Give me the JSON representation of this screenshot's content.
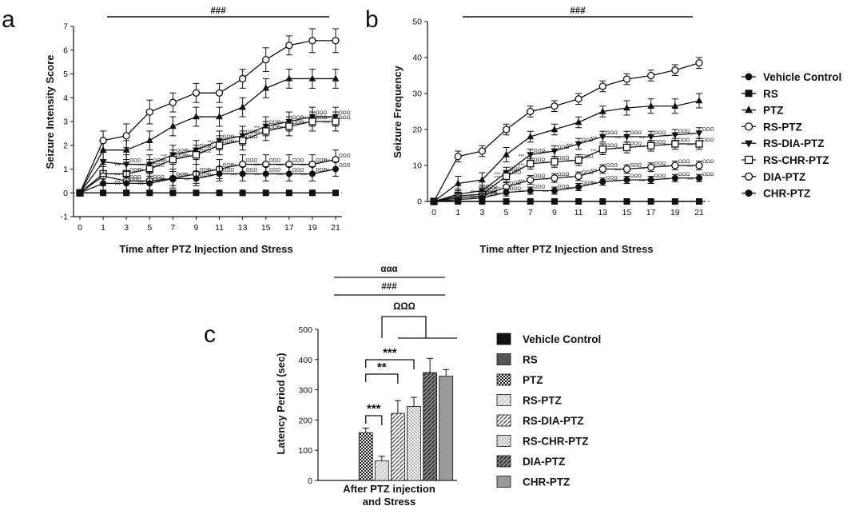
{
  "chart_data": [
    {
      "panel": "a",
      "type": "line",
      "ylabel": "Seizure Intensity Score",
      "xlabel": "Time after PTZ Injection and Stress",
      "x": [
        0,
        1,
        3,
        5,
        7,
        9,
        11,
        13,
        15,
        17,
        19,
        21
      ],
      "x_ticks": [
        "0",
        "1",
        "3",
        "5",
        "7",
        "9",
        "11",
        "13",
        "15",
        "17",
        "19",
        "21"
      ],
      "ylim": [
        -1,
        7
      ],
      "y_ticks": [
        "-1",
        "0",
        "1",
        "2",
        "3",
        "4",
        "5",
        "6",
        "7"
      ],
      "significance": "###",
      "star_label": "***",
      "omega_label": "ΩΩΩ",
      "series": [
        {
          "name": "Vehicle Control",
          "marker": "circle-filled",
          "values": [
            0,
            0,
            0,
            0,
            0,
            0,
            0,
            0,
            0,
            0,
            0,
            0
          ],
          "err": [
            0,
            0,
            0,
            0,
            0,
            0,
            0,
            0,
            0,
            0,
            0,
            0
          ]
        },
        {
          "name": "RS",
          "marker": "square-filled",
          "values": [
            0,
            0,
            0,
            0,
            0,
            0,
            0,
            0,
            0,
            0,
            0,
            0
          ],
          "err": [
            0,
            0,
            0,
            0,
            0,
            0,
            0,
            0,
            0,
            0,
            0,
            0
          ]
        },
        {
          "name": "PTZ",
          "marker": "triangle-filled",
          "values": [
            0,
            1.8,
            1.8,
            2.2,
            2.8,
            3.2,
            3.2,
            3.6,
            4.4,
            4.8,
            4.8,
            4.8
          ],
          "err": [
            0,
            0.4,
            0.4,
            0.4,
            0.4,
            0.4,
            0.4,
            0.4,
            0.4,
            0.4,
            0.4,
            0.4
          ]
        },
        {
          "name": "RS-PTZ",
          "marker": "circle-open",
          "values": [
            0,
            2.2,
            2.4,
            3.4,
            3.8,
            4.2,
            4.2,
            4.8,
            5.6,
            6.2,
            6.4,
            6.4
          ],
          "err": [
            0,
            0.4,
            0.5,
            0.5,
            0.4,
            0.4,
            0.4,
            0.4,
            0.5,
            0.4,
            0.5,
            0.5
          ]
        },
        {
          "name": "RS-DIA-PTZ",
          "marker": "triangle-down-filled",
          "values": [
            0,
            1.3,
            1.2,
            1.2,
            1.6,
            1.8,
            2.2,
            2.4,
            2.8,
            3.0,
            3.2,
            3.2
          ],
          "err": [
            0,
            0.4,
            0.4,
            0.4,
            0.4,
            0.4,
            0.4,
            0.4,
            0.4,
            0.4,
            0.4,
            0.4
          ]
        },
        {
          "name": "RS-CHR-PTZ",
          "marker": "square-open",
          "values": [
            0,
            0.8,
            0.8,
            1.0,
            1.4,
            1.6,
            2.0,
            2.2,
            2.6,
            2.8,
            3.0,
            3.0
          ],
          "err": [
            0,
            0.4,
            0.4,
            0.4,
            0.4,
            0.4,
            0.4,
            0.4,
            0.4,
            0.4,
            0.4,
            0.4
          ]
        },
        {
          "name": "DIA-PTZ",
          "marker": "circle-open",
          "values": [
            0,
            0.7,
            0.5,
            0.5,
            0.6,
            0.8,
            1.0,
            1.2,
            1.2,
            1.2,
            1.2,
            1.4
          ],
          "err": [
            0,
            0.4,
            0.4,
            0.4,
            0.4,
            0.4,
            0.4,
            0.4,
            0.4,
            0.4,
            0.4,
            0.4
          ]
        },
        {
          "name": "CHR-PTZ",
          "marker": "circle-filled",
          "values": [
            0,
            0.4,
            0.4,
            0.4,
            0.6,
            0.6,
            0.8,
            0.8,
            0.8,
            0.8,
            0.8,
            1.0
          ],
          "err": [
            0,
            0.3,
            0.3,
            0.3,
            0.3,
            0.3,
            0.3,
            0.3,
            0.3,
            0.3,
            0.3,
            0.3
          ]
        }
      ]
    },
    {
      "panel": "b",
      "type": "line",
      "ylabel": "Seizure Frequency",
      "xlabel": "Time after PTZ Injection and Stress",
      "x": [
        0,
        1,
        3,
        5,
        7,
        9,
        11,
        13,
        15,
        17,
        19,
        21
      ],
      "x_ticks": [
        "0",
        "1",
        "3",
        "5",
        "7",
        "9",
        "11",
        "13",
        "15",
        "17",
        "19",
        "21"
      ],
      "ylim": [
        0,
        50
      ],
      "y_ticks": [
        "0",
        "10",
        "20",
        "30",
        "40",
        "50"
      ],
      "significance": "###",
      "star_label": "***",
      "omega_label": "ΩΩΩ",
      "series": [
        {
          "name": "Vehicle Control",
          "marker": "circle-filled",
          "values": [
            0,
            0,
            0,
            0,
            0,
            0,
            0,
            0,
            0,
            0,
            0,
            0
          ],
          "err": [
            0,
            0,
            0,
            0,
            0,
            0,
            0,
            0,
            0,
            0,
            0,
            0
          ]
        },
        {
          "name": "RS",
          "marker": "square-filled",
          "values": [
            0,
            0,
            0,
            0,
            0,
            0,
            0,
            0,
            0,
            0,
            0,
            0
          ],
          "err": [
            0,
            0,
            0,
            0,
            0,
            0,
            0,
            0,
            0,
            0,
            0,
            0
          ]
        },
        {
          "name": "PTZ",
          "marker": "triangle-filled",
          "values": [
            0,
            5,
            6,
            13,
            18,
            20,
            22,
            25,
            26,
            26.5,
            26.5,
            28
          ],
          "err": [
            0,
            2,
            2,
            2,
            1.5,
            1.5,
            1.5,
            1.5,
            2,
            2,
            2,
            2
          ]
        },
        {
          "name": "RS-PTZ",
          "marker": "circle-open",
          "values": [
            0,
            12.5,
            14,
            20,
            25,
            26.5,
            28.5,
            32,
            34,
            35,
            36.5,
            38.5
          ],
          "err": [
            0,
            1.5,
            1.5,
            1.5,
            1.5,
            1.5,
            1.5,
            1.5,
            1.5,
            1.5,
            1.5,
            1.5
          ]
        },
        {
          "name": "RS-DIA-PTZ",
          "marker": "triangle-down-filled",
          "values": [
            0,
            2,
            3,
            8,
            13,
            14,
            16,
            18,
            18,
            18,
            18.5,
            19
          ],
          "err": [
            0,
            1.5,
            1.5,
            1.5,
            1.5,
            1.5,
            1.5,
            1.5,
            1.5,
            1.5,
            1.5,
            1.5
          ]
        },
        {
          "name": "RS-CHR-PTZ",
          "marker": "square-open",
          "values": [
            0,
            1.5,
            2,
            7,
            10.5,
            11,
            11.5,
            14.5,
            15,
            15.5,
            16,
            16
          ],
          "err": [
            0,
            1.5,
            1.5,
            1.5,
            1.5,
            1.5,
            1.5,
            1.5,
            1.5,
            1.5,
            1.5,
            1.5
          ]
        },
        {
          "name": "DIA-PTZ",
          "marker": "circle-open",
          "values": [
            0,
            1,
            1.5,
            4,
            6,
            6.5,
            7,
            9,
            9,
            9.5,
            10,
            10
          ],
          "err": [
            0,
            1.2,
            1.2,
            1.2,
            1.2,
            1.2,
            1.2,
            1.2,
            1.2,
            1.2,
            1.2,
            1.2
          ]
        },
        {
          "name": "CHR-PTZ",
          "marker": "circle-filled",
          "values": [
            0,
            0.5,
            1,
            2.5,
            3,
            3,
            4,
            5.5,
            6,
            6,
            6.5,
            6.5
          ],
          "err": [
            0,
            1,
            1,
            1,
            1,
            1,
            1,
            1,
            1,
            1,
            1,
            1
          ]
        }
      ]
    },
    {
      "panel": "c",
      "type": "bar",
      "ylabel": "Latency Period (sec)",
      "xlabel": "After PTZ injection and Stress",
      "xlabel_lines": [
        "After PTZ injection",
        "and Stress"
      ],
      "ylim": [
        0,
        500
      ],
      "y_ticks": [
        "0",
        "100",
        "200",
        "300",
        "400",
        "500"
      ],
      "categories": [
        "Vehicle Control",
        "RS",
        "PTZ",
        "RS-PTZ",
        "RS-DIA-PTZ",
        "RS-CHR-PTZ",
        "DIA-PTZ",
        "CHR-PTZ"
      ],
      "values": [
        0,
        0,
        158,
        65,
        222,
        245,
        357,
        345
      ],
      "err": [
        0,
        0,
        15,
        15,
        42,
        30,
        47,
        22
      ],
      "brackets": [
        {
          "label": "ααα",
          "from": "PTZ",
          "to": "RS-CHR-PTZ"
        },
        {
          "label": "###",
          "from": "PTZ",
          "to": "RS-CHR-PTZ"
        },
        {
          "label": "ΩΩΩ",
          "from": "RS-PTZ",
          "to": "DIA-PTZ, CHR-PTZ"
        },
        {
          "label": "***",
          "from": "PTZ",
          "to": "RS-CHR-PTZ"
        },
        {
          "label": "**",
          "from": "PTZ",
          "to": "RS-DIA-PTZ"
        },
        {
          "label": "***",
          "from": "PTZ",
          "to": "RS-PTZ"
        }
      ]
    }
  ],
  "panel_labels": {
    "a": "a",
    "b": "b",
    "c": "c"
  },
  "legend_ab": [
    "Vehicle Control",
    "RS",
    "PTZ",
    "RS-PTZ",
    "RS-DIA-PTZ",
    "RS-CHR-PTZ",
    "DIA-PTZ",
    "CHR-PTZ"
  ],
  "legend_c": [
    "Vehicle Control",
    "RS",
    "PTZ",
    "RS-PTZ",
    "RS-DIA-PTZ",
    "RS-CHR-PTZ",
    "DIA-PTZ",
    "CHR-PTZ"
  ],
  "colors": {
    "ink": "#111111",
    "white": "#ffffff",
    "rs_gray": "#555555",
    "chr_gray": "#9a9a9a",
    "light": "#d9d9d9"
  }
}
